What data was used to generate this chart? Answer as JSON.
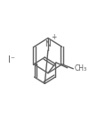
{
  "bg_color": "#ffffff",
  "line_color": "#606060",
  "text_color": "#606060",
  "line_width": 1.0,
  "iodide_label": "I⁻",
  "iodide_fontsize": 7,
  "figsize": [
    1.0,
    1.33
  ],
  "dpi": 100
}
